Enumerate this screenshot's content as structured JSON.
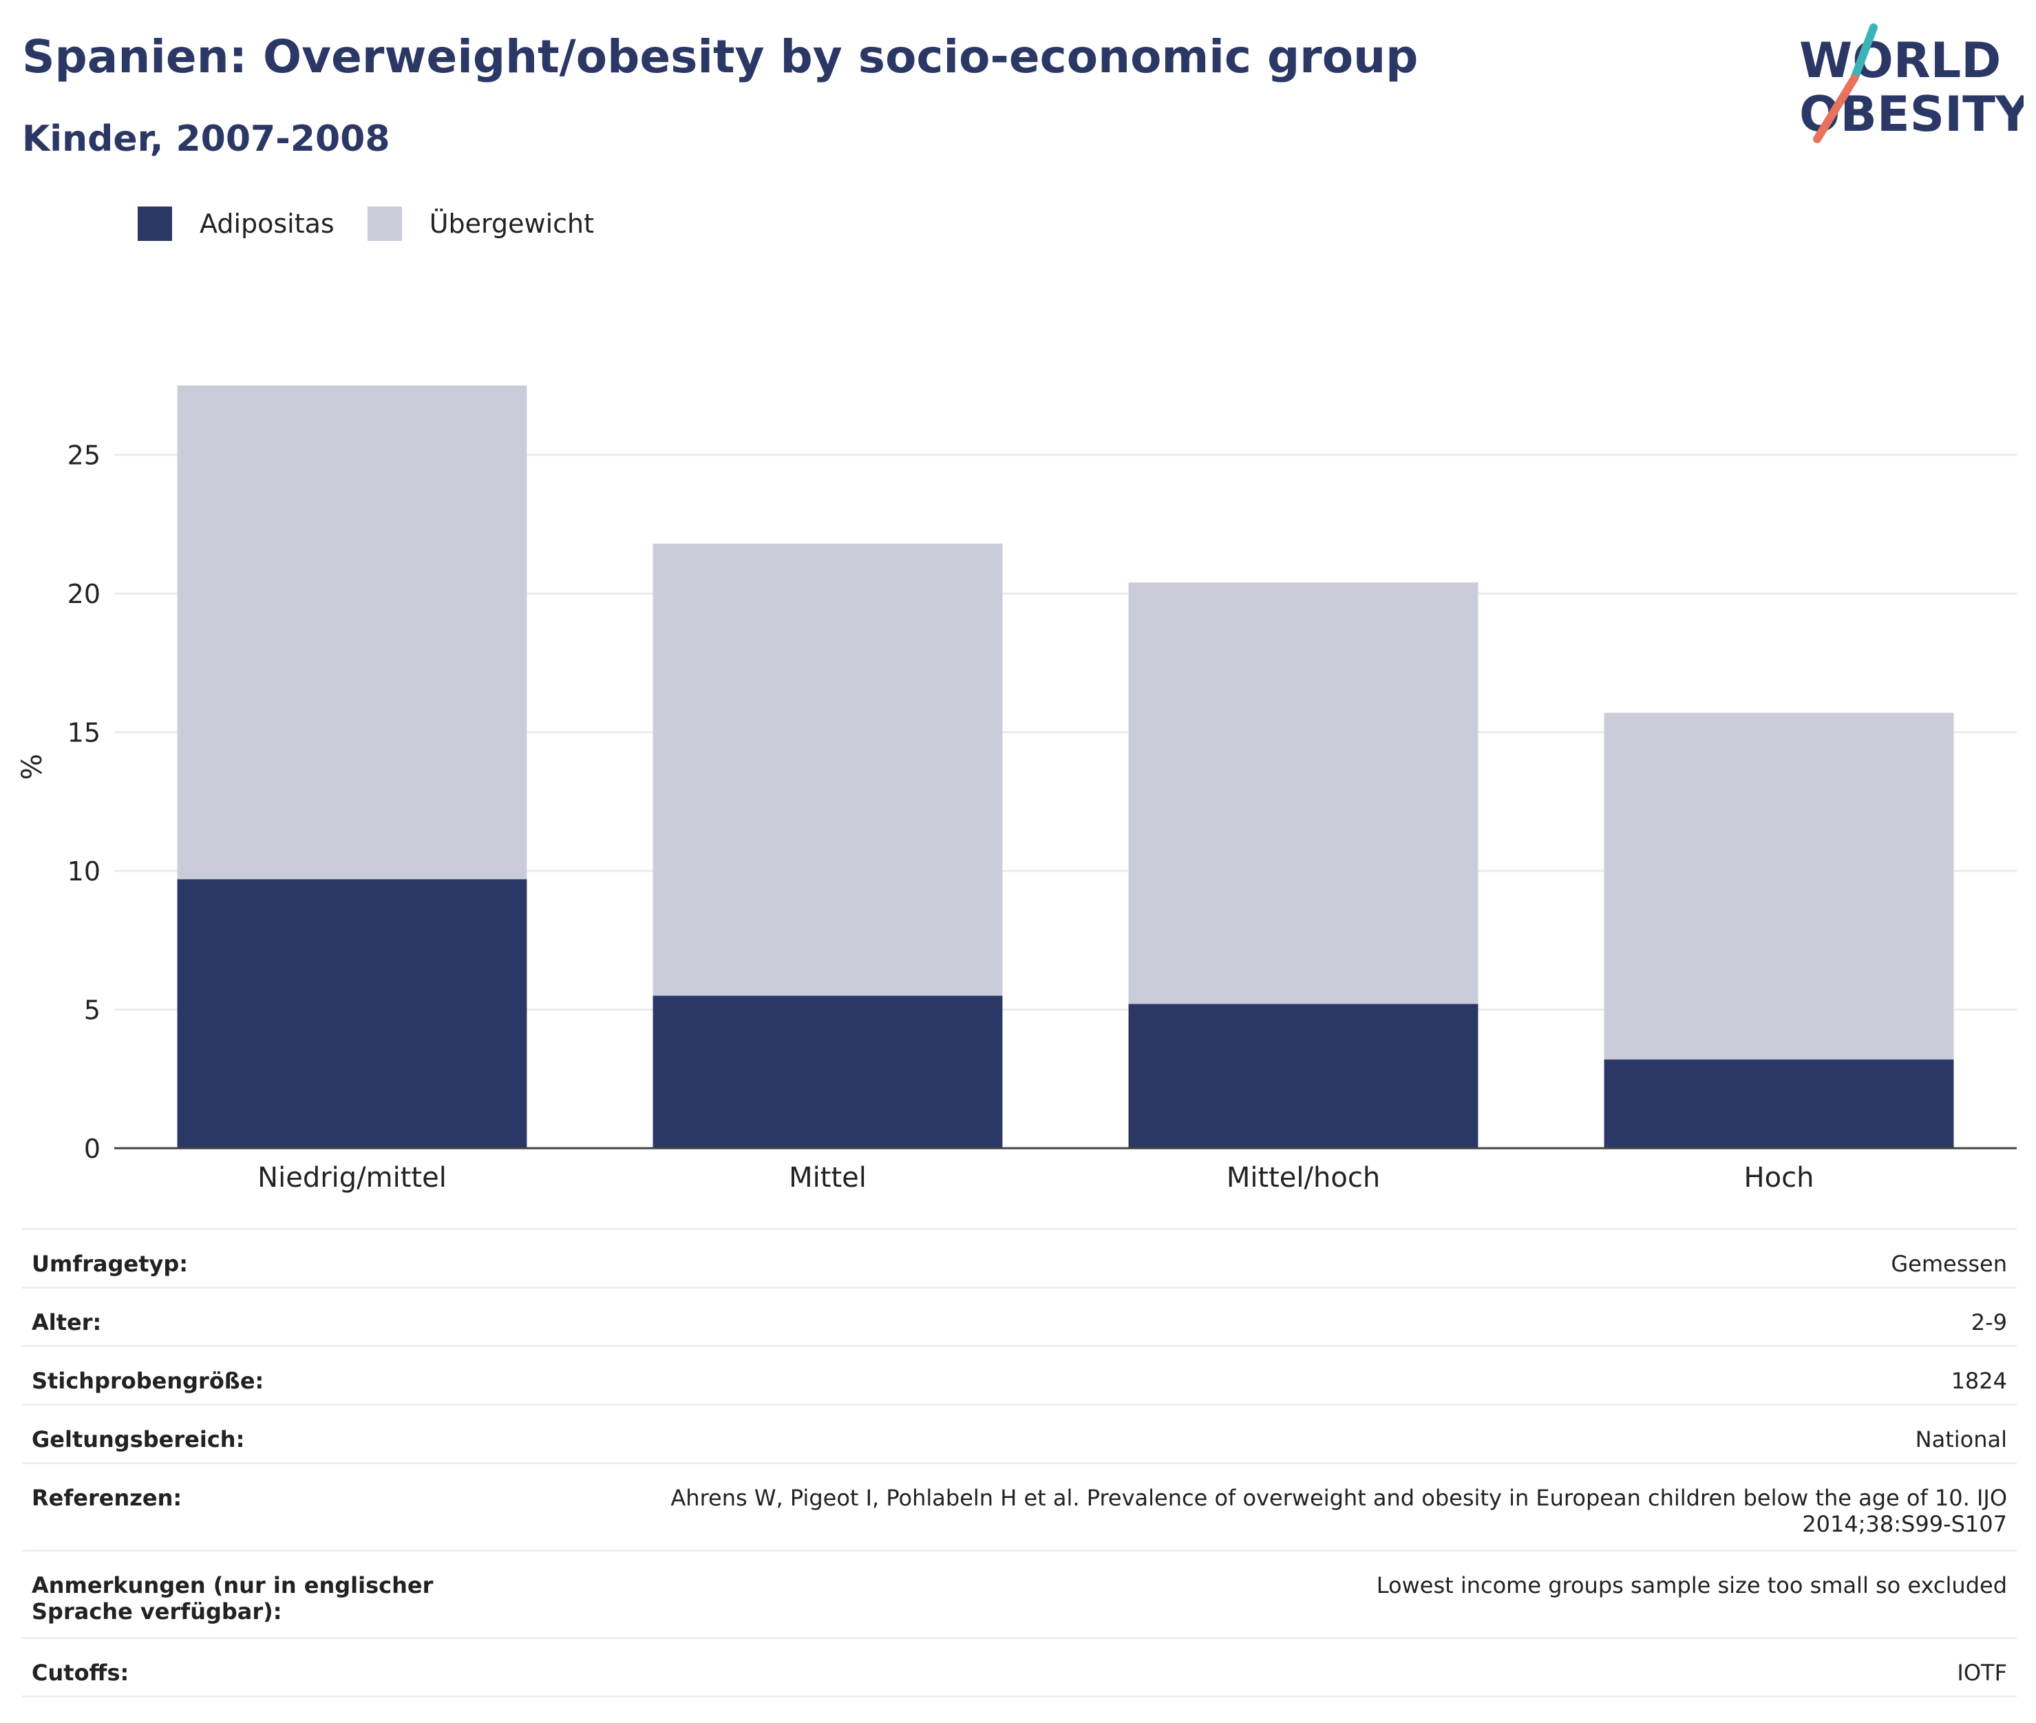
{
  "title": "Spanien: Overweight/obesity by socio-economic group",
  "subtitle": "Kinder, 2007-2008",
  "logo": {
    "line1": "WORLD",
    "line2": "OBESITY",
    "accent_teal": "#3bb3b9",
    "accent_coral": "#e8725e",
    "text_color": "#2b3866"
  },
  "legend": [
    {
      "label": "Adipositas",
      "color": "#2b3866"
    },
    {
      "label": "Übergewicht",
      "color": "#cacdd9"
    }
  ],
  "chart_data": {
    "type": "bar",
    "stacked": true,
    "categories": [
      "Niedrig/mittel",
      "Mittel",
      "Mittel/hoch",
      "Hoch"
    ],
    "series": [
      {
        "name": "Adipositas",
        "values": [
          9.7,
          5.5,
          5.2,
          3.2
        ],
        "color": "#2b3866"
      },
      {
        "name": "Übergewicht",
        "values": [
          17.8,
          16.3,
          15.2,
          12.5
        ],
        "color": "#cacdd9"
      }
    ],
    "ylabel": "%",
    "ylim": [
      0,
      27.5
    ],
    "yticks": [
      0,
      5,
      10,
      15,
      20,
      25
    ],
    "grid": true,
    "legend_position": "top-left"
  },
  "meta": [
    {
      "key": "Umfragetyp:",
      "value": "Gemessen"
    },
    {
      "key": "Alter:",
      "value": "2-9"
    },
    {
      "key": "Stichprobengröße:",
      "value": "1824"
    },
    {
      "key": "Geltungsbereich:",
      "value": "National"
    },
    {
      "key": "Referenzen:",
      "value": "Ahrens W, Pigeot I, Pohlabeln H et al. Prevalence of overweight and obesity in European children below the age of 10. IJO 2014;38:S99-S107"
    },
    {
      "key": "Anmerkungen (nur in englischer Sprache verfügbar):",
      "value": "Lowest income groups sample size too small so excluded"
    },
    {
      "key": "Cutoffs:",
      "value": "IOTF"
    }
  ]
}
